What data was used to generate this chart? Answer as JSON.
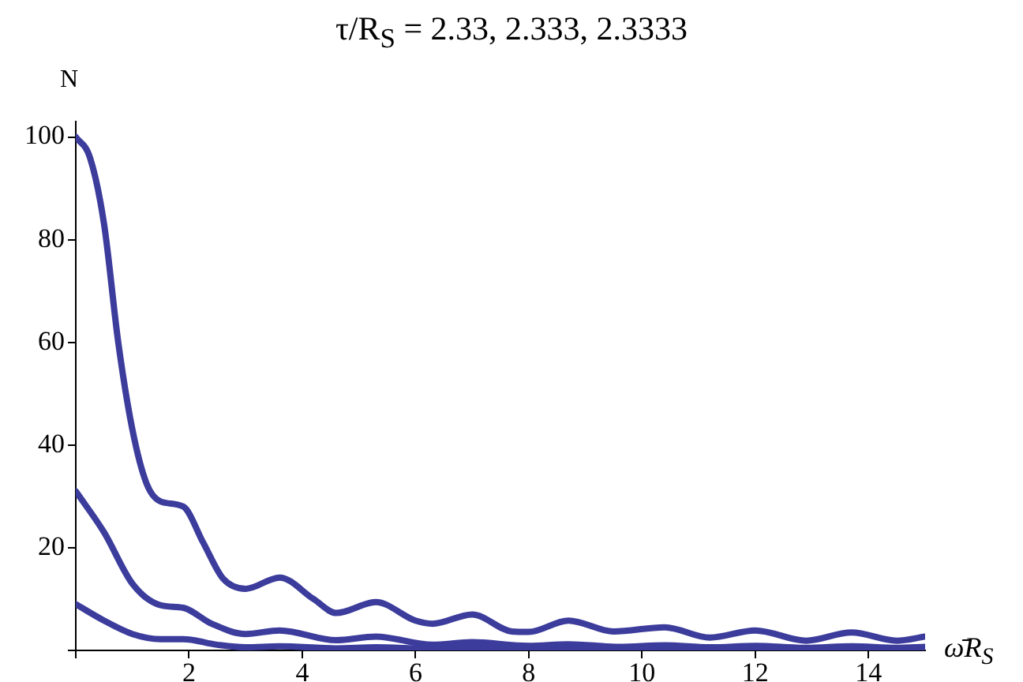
{
  "chart_data": {
    "type": "line",
    "title": "τ/R$_{S}$ = 2.33,  2.333,  2.3333",
    "xlabel": "ω̄R$_{S}$",
    "ylabel": "N",
    "xlim": [
      0,
      15
    ],
    "ylim": [
      0,
      103
    ],
    "xticks": [
      {
        "value": 0,
        "label": null
      },
      2,
      4,
      6,
      8,
      10,
      12,
      14
    ],
    "yticks": [
      {
        "value": 0,
        "label": null
      },
      20,
      40,
      60,
      80,
      100
    ],
    "grid": false,
    "legend": false,
    "marker": "none",
    "line_style": "solid",
    "series": [
      {
        "color": "#3c3c9c",
        "x": [
          0,
          0.25,
          0.5,
          0.75,
          1,
          1.25,
          1.5,
          1.9,
          2.25,
          2.6,
          3,
          3.6,
          4.2,
          4.6,
          5.3,
          6,
          6.3,
          7,
          7.7,
          8,
          8.7,
          9.5,
          10.4,
          11.2,
          12,
          12.9,
          13.7,
          14.5,
          15
        ],
        "values": [
          100,
          96,
          83,
          60,
          43,
          32.5,
          29,
          28,
          21,
          14,
          12,
          14.2,
          10,
          7.3,
          9.4,
          5.8,
          5.2,
          7,
          3.7,
          3.6,
          5.8,
          3.7,
          4.5,
          2.5,
          3.9,
          1.9,
          3.5,
          1.9,
          2.7
        ]
      },
      {
        "color": "#3c3c9c",
        "x": [
          0,
          0.5,
          1,
          1.5,
          1.9,
          2.4,
          3,
          3.6,
          4.6,
          5.3,
          6.3,
          7,
          8,
          8.7,
          9.6,
          10.4,
          11.2,
          12,
          12.9,
          13.7,
          14.5,
          15
        ],
        "values": [
          31,
          23,
          13,
          8.8,
          8.3,
          5.2,
          3.2,
          3.9,
          2,
          2.7,
          1.1,
          1.6,
          0.9,
          1.2,
          0.7,
          1,
          0.6,
          0.9,
          0.5,
          0.8,
          0.5,
          0.7
        ]
      },
      {
        "color": "#3c3c9c",
        "x": [
          0,
          0.5,
          1,
          1.5,
          1.9,
          2.5,
          3,
          3.6,
          4.6,
          5.3,
          6.3,
          7,
          8,
          9,
          10,
          11,
          12,
          13,
          14,
          15
        ],
        "values": [
          9,
          5.8,
          3.2,
          2.2,
          2.2,
          1.1,
          0.6,
          0.8,
          0.4,
          0.6,
          0.3,
          0.5,
          0.3,
          0.4,
          0.3,
          0.3,
          0.3,
          0.3,
          0.3,
          0.3
        ]
      }
    ]
  }
}
